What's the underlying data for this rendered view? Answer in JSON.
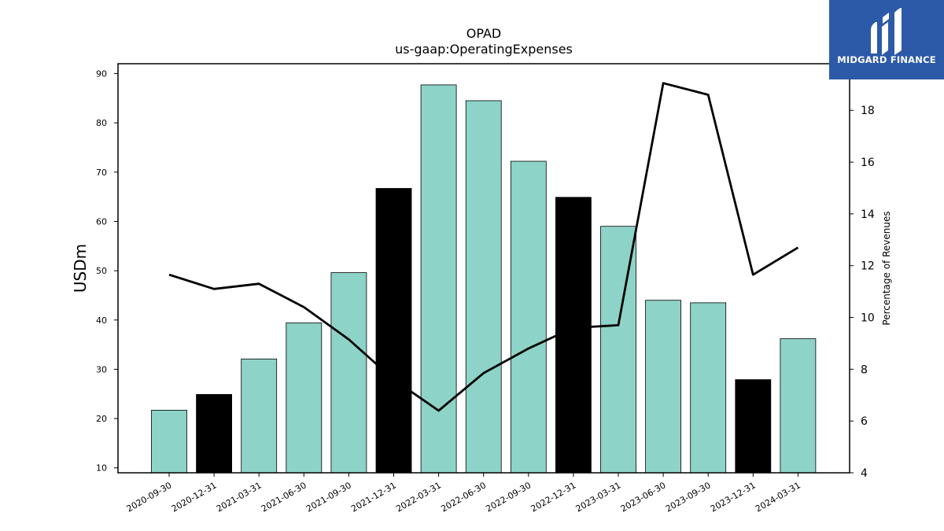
{
  "chart_data": {
    "type": "bar",
    "title": "OPAD",
    "subtitle": "us-gaap:OperatingExpenses",
    "ylabel": "USDm",
    "y2label": "Percentage of Revenues",
    "ylim": [
      9,
      92
    ],
    "y2lim": [
      4,
      19.8
    ],
    "yticks": [
      10,
      20,
      30,
      40,
      50,
      60,
      70,
      80,
      90
    ],
    "y2ticks": [
      4,
      6,
      8,
      10,
      12,
      14,
      16,
      18
    ],
    "categories": [
      "2020-09-30",
      "2020-12-31",
      "2021-03-31",
      "2021-06-30",
      "2021-09-30",
      "2021-12-31",
      "2022-03-31",
      "2022-06-30",
      "2022-09-30",
      "2022-12-31",
      "2023-03-31",
      "2023-06-30",
      "2023-09-30",
      "2023-12-31",
      "2024-03-31"
    ],
    "series": [
      {
        "kind": "bar",
        "axis": "left",
        "values": [
          21.7,
          24.9,
          32.1,
          39.4,
          49.6,
          66.7,
          87.7,
          84.5,
          72.2,
          64.9,
          59.0,
          44.0,
          43.5,
          27.9,
          36.2
        ],
        "colors": [
          "#8dd3c7",
          "#000000",
          "#8dd3c7",
          "#8dd3c7",
          "#8dd3c7",
          "#000000",
          "#8dd3c7",
          "#8dd3c7",
          "#8dd3c7",
          "#000000",
          "#8dd3c7",
          "#8dd3c7",
          "#8dd3c7",
          "#000000",
          "#8dd3c7"
        ]
      },
      {
        "kind": "line",
        "axis": "right",
        "color": "#000000",
        "values": [
          11.65,
          11.1,
          11.3,
          10.4,
          9.15,
          7.6,
          6.4,
          7.85,
          8.8,
          9.6,
          9.7,
          19.05,
          18.6,
          11.65,
          12.7
        ]
      }
    ],
    "grid": false,
    "legend": "none"
  },
  "logo": {
    "text": "MIDGARD FINANCE",
    "background": "#2c5aa8"
  }
}
